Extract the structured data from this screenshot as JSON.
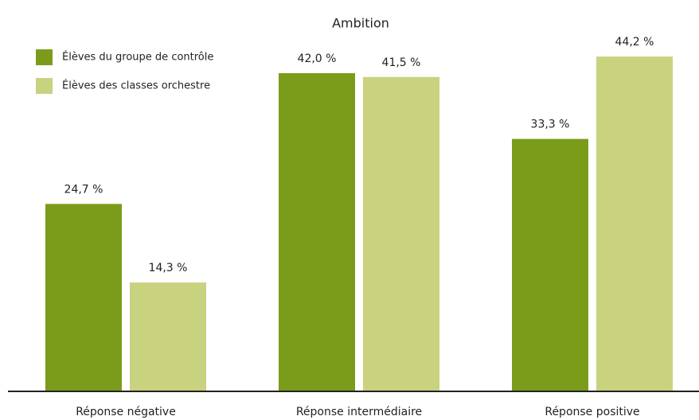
{
  "chart_data": {
    "type": "bar",
    "title": "Ambition",
    "categories": [
      "Réponse négative",
      "Réponse intermédiaire",
      "Réponse positive"
    ],
    "series": [
      {
        "name": "Élèves du groupe de contrôle",
        "color": "#7b9c1b",
        "values": [
          24.7,
          42.0,
          33.3
        ],
        "value_labels": [
          "24,7 %",
          "42,0 %",
          "33,3 %"
        ]
      },
      {
        "name": "Élèves des classes orchestre",
        "color": "#c9d27f",
        "values": [
          14.3,
          41.5,
          44.2
        ],
        "value_labels": [
          "14,3 %",
          "41,5 %",
          "44,2 %"
        ]
      }
    ],
    "legend": "upper left"
  }
}
